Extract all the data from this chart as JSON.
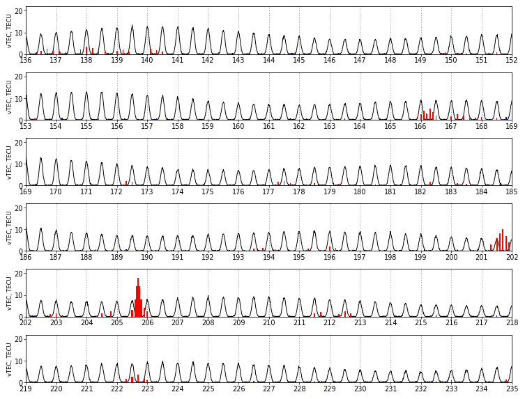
{
  "rows": [
    {
      "xstart": 136,
      "xend": 152,
      "xticks": [
        136,
        137,
        138,
        139,
        140,
        141,
        142,
        143,
        144,
        145,
        146,
        147,
        148,
        149,
        150,
        151,
        152
      ]
    },
    {
      "xstart": 153,
      "xend": 169,
      "xticks": [
        153,
        154,
        155,
        156,
        157,
        158,
        159,
        160,
        161,
        162,
        163,
        164,
        165,
        166,
        167,
        168,
        169
      ]
    },
    {
      "xstart": 169,
      "xend": 185,
      "xticks": [
        169,
        170,
        171,
        172,
        173,
        174,
        175,
        176,
        177,
        178,
        179,
        180,
        181,
        182,
        183,
        184,
        185
      ]
    },
    {
      "xstart": 186,
      "xend": 202,
      "xticks": [
        186,
        187,
        188,
        189,
        190,
        191,
        192,
        193,
        194,
        195,
        196,
        197,
        198,
        199,
        200,
        201,
        202
      ]
    },
    {
      "xstart": 202,
      "xend": 218,
      "xticks": [
        202,
        203,
        204,
        205,
        206,
        207,
        208,
        209,
        210,
        211,
        212,
        213,
        214,
        215,
        216,
        217,
        218
      ]
    },
    {
      "xstart": 219,
      "xend": 235,
      "xticks": [
        219,
        220,
        221,
        222,
        223,
        224,
        225,
        226,
        227,
        228,
        229,
        230,
        231,
        232,
        233,
        234,
        235
      ]
    }
  ],
  "ylim": [
    0,
    22
  ],
  "yticks": [
    0,
    10,
    20
  ],
  "line_color": "#000000",
  "red_color": "#ff0000",
  "blue_color": "#0000ff",
  "background_color": "#ffffff",
  "ylabel": "vTEC, TECU",
  "samples_per_day": 120,
  "row_red_spikes": [
    [
      [
        136.5,
        1.5,
        0.04
      ],
      [
        136.7,
        2.5,
        0.04
      ],
      [
        136.9,
        1.8,
        0.03
      ],
      [
        137.1,
        1.2,
        0.03
      ],
      [
        137.3,
        0.8,
        0.03
      ],
      [
        137.8,
        2.0,
        0.04
      ],
      [
        138.0,
        3.5,
        0.05
      ],
      [
        138.2,
        2.8,
        0.04
      ],
      [
        138.4,
        1.5,
        0.03
      ],
      [
        138.6,
        1.0,
        0.03
      ],
      [
        139.0,
        1.5,
        0.04
      ],
      [
        139.2,
        2.0,
        0.04
      ],
      [
        139.4,
        1.0,
        0.03
      ],
      [
        140.1,
        2.5,
        0.05
      ],
      [
        140.3,
        1.8,
        0.04
      ],
      [
        140.5,
        1.2,
        0.03
      ],
      [
        144.5,
        0.5,
        0.03
      ],
      [
        145.0,
        0.4,
        0.03
      ],
      [
        149.8,
        0.8,
        0.03
      ],
      [
        150.2,
        0.5,
        0.03
      ],
      [
        151.5,
        0.8,
        0.03
      ]
    ],
    [
      [
        153.3,
        0.6,
        0.03
      ],
      [
        155.4,
        0.5,
        0.03
      ],
      [
        166.0,
        2.5,
        0.04
      ],
      [
        166.1,
        4.0,
        0.04
      ],
      [
        166.2,
        3.0,
        0.04
      ],
      [
        166.3,
        5.0,
        0.05
      ],
      [
        166.4,
        3.5,
        0.04
      ],
      [
        166.5,
        2.0,
        0.04
      ],
      [
        167.0,
        1.5,
        0.04
      ],
      [
        167.2,
        2.5,
        0.05
      ],
      [
        167.4,
        1.8,
        0.04
      ],
      [
        167.6,
        1.0,
        0.03
      ],
      [
        167.8,
        0.8,
        0.03
      ],
      [
        168.0,
        1.2,
        0.03
      ],
      [
        168.5,
        1.0,
        0.03
      ],
      [
        168.8,
        0.8,
        0.03
      ]
    ],
    [
      [
        172.3,
        2.0,
        0.04
      ],
      [
        172.5,
        1.5,
        0.03
      ],
      [
        177.3,
        1.5,
        0.04
      ],
      [
        177.5,
        2.0,
        0.04
      ],
      [
        177.7,
        1.0,
        0.03
      ],
      [
        178.5,
        1.0,
        0.04
      ],
      [
        179.3,
        0.8,
        0.03
      ],
      [
        182.3,
        1.5,
        0.04
      ],
      [
        183.2,
        1.0,
        0.04
      ],
      [
        183.5,
        0.8,
        0.03
      ],
      [
        184.2,
        0.7,
        0.03
      ],
      [
        184.6,
        0.5,
        0.03
      ]
    ],
    [
      [
        188.3,
        0.8,
        0.03
      ],
      [
        188.6,
        0.5,
        0.03
      ],
      [
        193.5,
        1.0,
        0.04
      ],
      [
        193.8,
        1.5,
        0.04
      ],
      [
        194.2,
        0.8,
        0.03
      ],
      [
        195.3,
        1.0,
        0.04
      ],
      [
        196.0,
        2.0,
        0.05
      ],
      [
        196.2,
        1.5,
        0.04
      ],
      [
        199.5,
        0.5,
        0.03
      ],
      [
        201.3,
        3.0,
        0.04
      ],
      [
        201.5,
        6.0,
        0.05
      ],
      [
        201.6,
        8.0,
        0.06
      ],
      [
        201.7,
        10.0,
        0.05
      ],
      [
        201.8,
        7.0,
        0.05
      ],
      [
        201.9,
        4.0,
        0.04
      ],
      [
        202.0,
        2.0,
        0.04
      ]
    ],
    [
      [
        202.8,
        1.0,
        0.04
      ],
      [
        203.0,
        1.5,
        0.04
      ],
      [
        203.2,
        0.8,
        0.03
      ],
      [
        204.5,
        1.5,
        0.04
      ],
      [
        204.8,
        2.5,
        0.05
      ],
      [
        205.5,
        3.0,
        0.05
      ],
      [
        205.6,
        8.0,
        0.05
      ],
      [
        205.65,
        14.0,
        0.05
      ],
      [
        205.7,
        18.0,
        0.05
      ],
      [
        205.75,
        14.0,
        0.05
      ],
      [
        205.8,
        8.0,
        0.05
      ],
      [
        205.9,
        4.0,
        0.04
      ],
      [
        206.0,
        2.5,
        0.04
      ],
      [
        211.5,
        1.5,
        0.04
      ],
      [
        211.7,
        2.0,
        0.04
      ],
      [
        212.3,
        1.0,
        0.04
      ],
      [
        212.5,
        2.5,
        0.05
      ],
      [
        212.7,
        1.5,
        0.04
      ]
    ],
    [
      [
        222.3,
        1.5,
        0.04
      ],
      [
        222.5,
        2.5,
        0.05
      ],
      [
        222.7,
        3.5,
        0.05
      ],
      [
        222.9,
        2.0,
        0.04
      ],
      [
        223.0,
        1.0,
        0.04
      ],
      [
        232.5,
        0.5,
        0.03
      ],
      [
        233.0,
        0.8,
        0.03
      ],
      [
        234.8,
        1.2,
        0.04
      ]
    ]
  ],
  "row_blue_spikes": [
    [
      [
        144.8,
        0.4,
        0.03
      ],
      [
        150.5,
        0.3,
        0.03
      ]
    ],
    [
      [
        154.2,
        0.8,
        0.04
      ],
      [
        157.3,
        0.6,
        0.04
      ],
      [
        163.5,
        0.5,
        0.03
      ],
      [
        164.0,
        0.4,
        0.03
      ],
      [
        168.8,
        1.2,
        0.04
      ]
    ],
    [
      [
        174.3,
        0.4,
        0.03
      ],
      [
        180.5,
        0.5,
        0.03
      ]
    ],
    [
      [
        189.3,
        0.8,
        0.04
      ]
    ],
    [
      [
        202.3,
        0.4,
        0.03
      ],
      [
        215.5,
        0.8,
        0.04
      ],
      [
        217.5,
        0.6,
        0.04
      ]
    ],
    [
      [
        226.5,
        0.5,
        0.03
      ],
      [
        228.5,
        0.4,
        0.03
      ],
      [
        232.8,
        0.5,
        0.03
      ]
    ]
  ]
}
